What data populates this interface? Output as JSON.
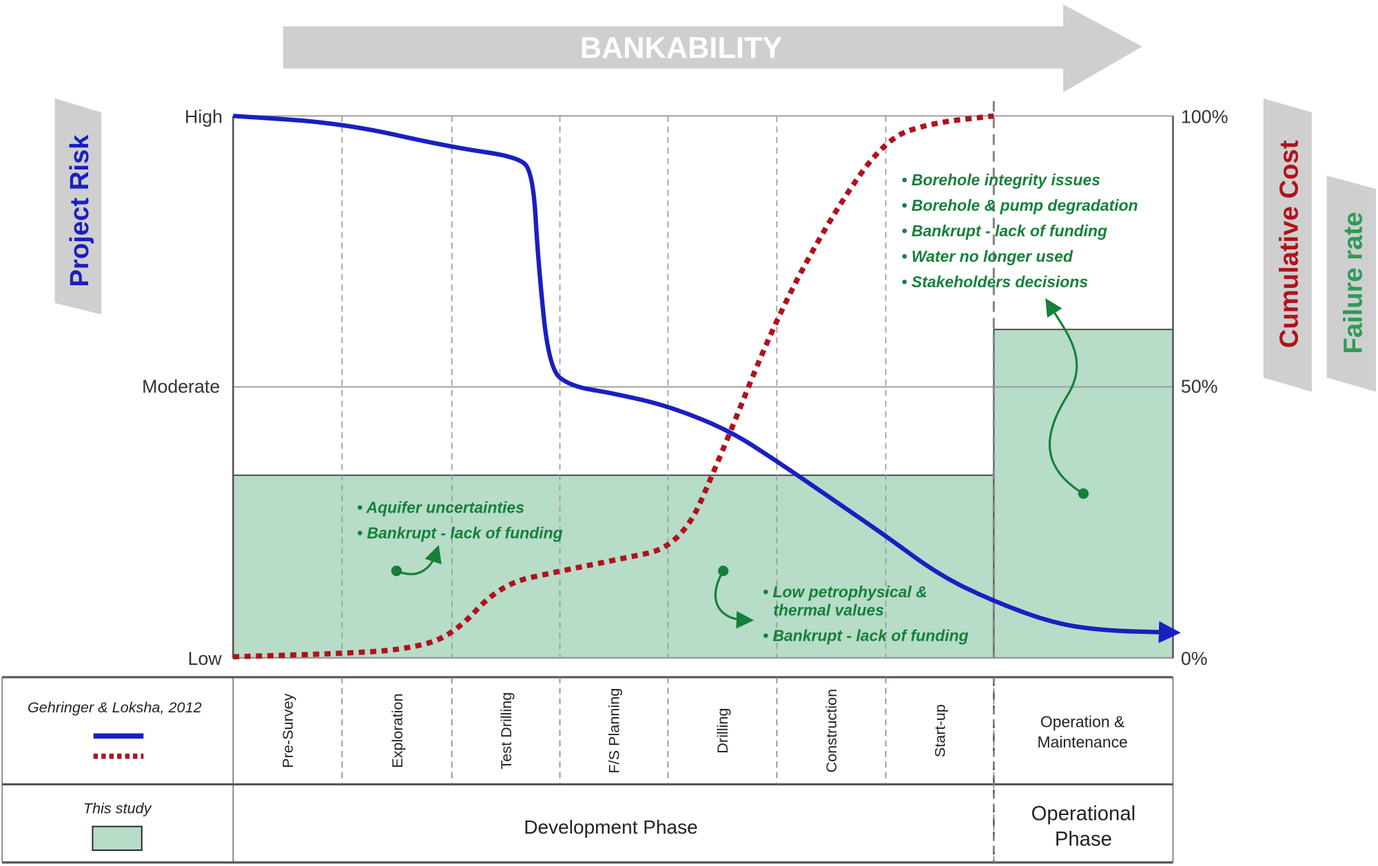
{
  "chart_data": {
    "type": "line",
    "title": "BANKABILITY",
    "ylabel_left": "Project Risk",
    "ylabel_right": [
      "Cumulative Cost",
      "Failure rate"
    ],
    "left_ticks": [
      "High",
      "Moderate",
      "Low"
    ],
    "right_ticks": [
      "100%",
      "50%",
      "0%"
    ],
    "ylim": [
      0,
      100
    ],
    "x_unit": "stage index (0-8, column boundaries)",
    "stages": [
      "Pre-Survey",
      "Exploration",
      "Test Drilling",
      "F/S Planning",
      "Drilling",
      "Construction",
      "Start-up",
      "Operation & Maintenance"
    ],
    "phases": [
      "Development Phase",
      "Operational Phase"
    ],
    "phase_labels": {
      "development": "Development Phase",
      "operational_1": "Operational",
      "operational_2": "Phase",
      "om_1": "Operation &",
      "om_2": "Maintenance"
    },
    "series": [
      {
        "name": "Project risk (Gehringer & Loksha, 2012)",
        "style": "solid",
        "color": "#1a1fc0",
        "points": [
          [
            0,
            100
          ],
          [
            1,
            98.7
          ],
          [
            2,
            94.2
          ],
          [
            2.6,
            92.5
          ],
          [
            2.75,
            89.8
          ],
          [
            2.8,
            72.8
          ],
          [
            2.9,
            53.3
          ],
          [
            3.1,
            50.1
          ],
          [
            3.5,
            48.8
          ],
          [
            4,
            46.5
          ],
          [
            4.56,
            42
          ],
          [
            5,
            36.3
          ],
          [
            5.53,
            29
          ],
          [
            6,
            22.5
          ],
          [
            6.5,
            15.2
          ],
          [
            7,
            10.4
          ],
          [
            7.34,
            6.3
          ],
          [
            7.63,
            5
          ],
          [
            7.97,
            4.7
          ]
        ]
      },
      {
        "name": "Cumulative cost (Gehringer & Loksha, 2012)",
        "style": "dotted",
        "color": "#b0121b",
        "points": [
          [
            0,
            0.2
          ],
          [
            1,
            0.8
          ],
          [
            1.56,
            1.5
          ],
          [
            2,
            3.9
          ],
          [
            2.45,
            13.6
          ],
          [
            3,
            16
          ],
          [
            3.5,
            18
          ],
          [
            4.12,
            20.6
          ],
          [
            4.48,
            37
          ],
          [
            5,
            63
          ],
          [
            5.53,
            82.5
          ],
          [
            6,
            95.8
          ],
          [
            6.42,
            98.7
          ],
          [
            7,
            100
          ]
        ]
      },
      {
        "name": "Failure rate (This study)",
        "type": "bar",
        "color": "#b7dcc8",
        "bars": [
          {
            "from": 0,
            "to": 7,
            "value": 33.7
          },
          {
            "from": 7,
            "to": 8,
            "value": 60.6
          }
        ]
      }
    ],
    "annotations": {
      "exploration": [
        "• Aquifer uncertainties",
        "• Bankrupt - lack of funding"
      ],
      "drilling": [
        "• Low petrophysical &",
        "thermal values",
        "• Bankrupt - lack of funding"
      ],
      "operation": [
        "• Borehole integrity issues",
        "• Borehole & pump degradation",
        "• Bankrupt - lack of funding",
        "• Water no longer used",
        "• Stakeholders decisions"
      ]
    },
    "legend": {
      "source": "Gehringer & Loksha, 2012",
      "study": "This study"
    }
  }
}
